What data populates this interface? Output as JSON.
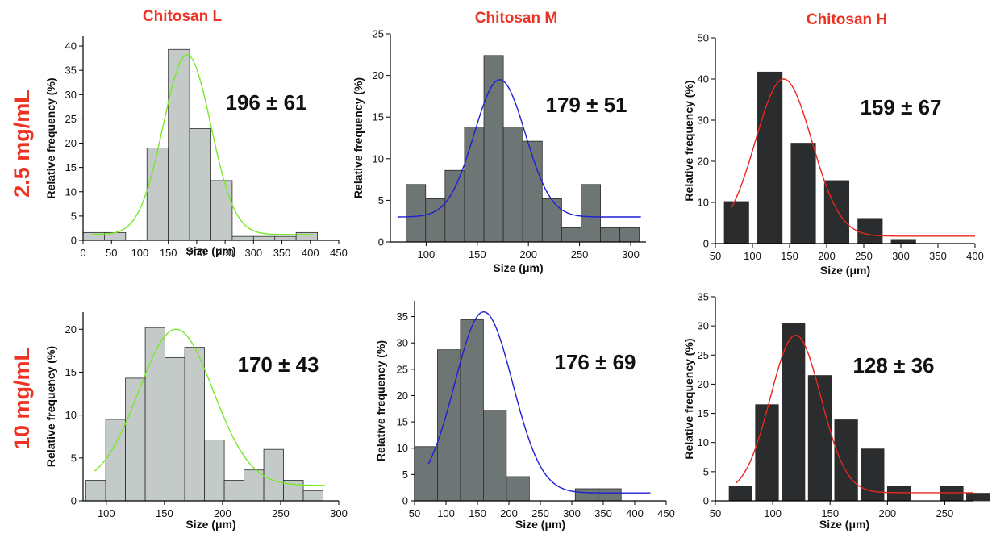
{
  "column_titles": [
    "Chitosan L",
    "Chitosan M",
    "Chitosan H"
  ],
  "row_labels": [
    "2.5 mg/mL",
    "10 mg/mL"
  ],
  "chart_data": [
    {
      "type": "bar",
      "row": "2.5 mg/mL",
      "column": "Chitosan L",
      "xlabel": "Size (μm)",
      "ylabel": "Relative frequency (%)",
      "annotation": "196 ± 61",
      "xlim": [
        0,
        450
      ],
      "ylim": [
        0,
        42
      ],
      "xticks": [
        0,
        50,
        100,
        150,
        200,
        250,
        300,
        350,
        400,
        450
      ],
      "yticks": [
        0,
        5,
        10,
        15,
        20,
        25,
        30,
        35,
        40
      ],
      "bar_color": "#c4cac8",
      "fit_color": "#7ae82a",
      "bins": [
        {
          "x0": 0,
          "x1": 37.5,
          "value": 1.6
        },
        {
          "x0": 37.5,
          "x1": 75,
          "value": 1.6
        },
        {
          "x0": 112.5,
          "x1": 150,
          "value": 19
        },
        {
          "x0": 150,
          "x1": 187.5,
          "value": 39.3
        },
        {
          "x0": 187.5,
          "x1": 225,
          "value": 23
        },
        {
          "x0": 225,
          "x1": 262.5,
          "value": 12.3
        },
        {
          "x0": 262.5,
          "x1": 300,
          "value": 0.8
        },
        {
          "x0": 300,
          "x1": 337.5,
          "value": 0.8
        },
        {
          "x0": 337.5,
          "x1": 375,
          "value": 0.8
        },
        {
          "x0": 375,
          "x1": 412.5,
          "value": 1.6
        }
      ],
      "fit": {
        "mean": 183,
        "sd": 42,
        "amplitude": 37,
        "baseline": 1.2,
        "x_range": [
          15,
          405
        ]
      }
    },
    {
      "type": "bar",
      "row": "2.5 mg/mL",
      "column": "Chitosan M",
      "xlabel": "Size (μm)",
      "ylabel": "Relative frequency (%)",
      "annotation": "179 ± 51",
      "xlim": [
        65,
        315
      ],
      "ylim": [
        0,
        25
      ],
      "xticks": [
        100,
        150,
        200,
        250,
        300
      ],
      "yticks": [
        0,
        5,
        10,
        15,
        20,
        25
      ],
      "bar_color": "#6d7575",
      "fit_color": "#1f1fd6",
      "bins": [
        {
          "x0": 80.5,
          "x1": 99.5,
          "value": 6.9
        },
        {
          "x0": 99.5,
          "x1": 118.5,
          "value": 5.2
        },
        {
          "x0": 118.5,
          "x1": 137.5,
          "value": 8.6
        },
        {
          "x0": 137.5,
          "x1": 156.5,
          "value": 13.8
        },
        {
          "x0": 156.5,
          "x1": 175.5,
          "value": 22.4
        },
        {
          "x0": 175.5,
          "x1": 194.5,
          "value": 13.8
        },
        {
          "x0": 194.5,
          "x1": 213.5,
          "value": 12.1
        },
        {
          "x0": 213.5,
          "x1": 232.5,
          "value": 5.2
        },
        {
          "x0": 232.5,
          "x1": 251.5,
          "value": 1.7
        },
        {
          "x0": 251.5,
          "x1": 270.5,
          "value": 6.9
        },
        {
          "x0": 270.5,
          "x1": 289.5,
          "value": 1.7
        },
        {
          "x0": 289.5,
          "x1": 308.5,
          "value": 1.7
        }
      ],
      "fit": {
        "mean": 172,
        "sd": 25,
        "amplitude": 16.5,
        "baseline": 3.0,
        "x_range": [
          72,
          310
        ]
      }
    },
    {
      "type": "bar",
      "row": "2.5 mg/mL",
      "column": "Chitosan H",
      "xlabel": "Size (μm)",
      "ylabel": "Relative frequency (%)",
      "annotation": "159 ± 67",
      "xlim": [
        50,
        400
      ],
      "ylim": [
        0,
        50
      ],
      "xticks": [
        50,
        100,
        150,
        200,
        250,
        300,
        350,
        400
      ],
      "yticks": [
        0,
        10,
        20,
        30,
        40,
        50
      ],
      "bar_color": "#2a2c2d",
      "fit_color": "#e8281e",
      "bins": [
        {
          "x0": 62,
          "x1": 95,
          "value": 10.2
        },
        {
          "x0": 107,
          "x1": 140,
          "value": 41.7
        },
        {
          "x0": 152,
          "x1": 185,
          "value": 24.4
        },
        {
          "x0": 197,
          "x1": 230,
          "value": 15.3
        },
        {
          "x0": 242,
          "x1": 275,
          "value": 6.1
        },
        {
          "x0": 287,
          "x1": 320,
          "value": 1.0
        }
      ],
      "fit": {
        "mean": 142,
        "sd": 38,
        "amplitude": 38.2,
        "baseline": 1.8,
        "x_range": [
          72,
          400
        ]
      }
    },
    {
      "type": "bar",
      "row": "10 mg/mL",
      "column": "Chitosan L",
      "xlabel": "Size (μm)",
      "ylabel": "Relative frequency (%)",
      "annotation": "170 ± 43",
      "xlim": [
        80,
        300
      ],
      "ylim": [
        0,
        22
      ],
      "xticks": [
        100,
        150,
        200,
        250,
        300
      ],
      "yticks": [
        0,
        5,
        10,
        15,
        20
      ],
      "bar_color": "#c4cac8",
      "fit_color": "#7ae82a",
      "bins": [
        {
          "x0": 82.5,
          "x1": 99.5,
          "value": 2.4
        },
        {
          "x0": 99.5,
          "x1": 116.5,
          "value": 9.5
        },
        {
          "x0": 116.5,
          "x1": 133.5,
          "value": 14.3
        },
        {
          "x0": 133.5,
          "x1": 150.5,
          "value": 20.2
        },
        {
          "x0": 150.5,
          "x1": 167.5,
          "value": 16.7
        },
        {
          "x0": 167.5,
          "x1": 184.5,
          "value": 17.9
        },
        {
          "x0": 184.5,
          "x1": 201.5,
          "value": 7.1
        },
        {
          "x0": 201.5,
          "x1": 218.5,
          "value": 2.4
        },
        {
          "x0": 218.5,
          "x1": 235.5,
          "value": 3.6
        },
        {
          "x0": 235.5,
          "x1": 252.5,
          "value": 6.0
        },
        {
          "x0": 252.5,
          "x1": 269.5,
          "value": 2.4
        },
        {
          "x0": 269.5,
          "x1": 286.5,
          "value": 1.2
        }
      ],
      "fit": {
        "mean": 160,
        "sd": 32,
        "amplitude": 18.2,
        "baseline": 1.8,
        "x_range": [
          90,
          288
        ]
      }
    },
    {
      "type": "bar",
      "row": "10 mg/mL",
      "column": "Chitosan M",
      "xlabel": "Size (μm)",
      "ylabel": "Relative frequency (%)",
      "annotation": "176 ± 69",
      "xlim": [
        50,
        450
      ],
      "ylim": [
        0,
        38
      ],
      "xticks": [
        50,
        100,
        150,
        200,
        250,
        300,
        350,
        400,
        450
      ],
      "yticks": [
        0,
        5,
        10,
        15,
        20,
        25,
        30,
        35
      ],
      "bar_color": "#6d7575",
      "fit_color": "#1f1fd6",
      "bins": [
        {
          "x0": 50,
          "x1": 86.5,
          "value": 10.3
        },
        {
          "x0": 86.5,
          "x1": 123,
          "value": 28.7
        },
        {
          "x0": 123,
          "x1": 159.5,
          "value": 34.4
        },
        {
          "x0": 159.5,
          "x1": 196,
          "value": 17.2
        },
        {
          "x0": 196,
          "x1": 232.5,
          "value": 4.6
        },
        {
          "x0": 232.5,
          "x1": 269,
          "value": 0
        },
        {
          "x0": 269,
          "x1": 305.5,
          "value": 0
        },
        {
          "x0": 305.5,
          "x1": 342,
          "value": 2.3
        },
        {
          "x0": 342,
          "x1": 378.5,
          "value": 2.3
        }
      ],
      "fit": {
        "mean": 160,
        "sd": 46,
        "amplitude": 34.4,
        "baseline": 1.5,
        "x_range": [
          72,
          425
        ]
      }
    },
    {
      "type": "bar",
      "row": "10 mg/mL",
      "column": "Chitosan H",
      "xlabel": "Size (μm)",
      "ylabel": "Relative frequency (%)",
      "annotation": "128 ± 36",
      "xlim": [
        50,
        275
      ],
      "ylim": [
        0,
        35
      ],
      "xticks": [
        50,
        100,
        150,
        200,
        250
      ],
      "yticks": [
        0,
        5,
        10,
        15,
        20,
        25,
        30,
        35
      ],
      "bar_color": "#2a2c2d",
      "fit_color": "#e8281e",
      "bins": [
        {
          "x0": 62,
          "x1": 82,
          "value": 2.5
        },
        {
          "x0": 85,
          "x1": 105,
          "value": 16.5
        },
        {
          "x0": 108,
          "x1": 128,
          "value": 30.4
        },
        {
          "x0": 131,
          "x1": 151,
          "value": 21.5
        },
        {
          "x0": 154,
          "x1": 174,
          "value": 13.9
        },
        {
          "x0": 177,
          "x1": 197,
          "value": 8.9
        },
        {
          "x0": 200,
          "x1": 220,
          "value": 2.5
        },
        {
          "x0": 223,
          "x1": 243,
          "value": 0
        },
        {
          "x0": 246,
          "x1": 266,
          "value": 2.5
        },
        {
          "x0": 269,
          "x1": 289,
          "value": 1.3
        }
      ],
      "fit": {
        "mean": 120,
        "sd": 22,
        "amplitude": 27,
        "baseline": 1.4,
        "x_range": [
          68,
          275
        ]
      }
    }
  ]
}
